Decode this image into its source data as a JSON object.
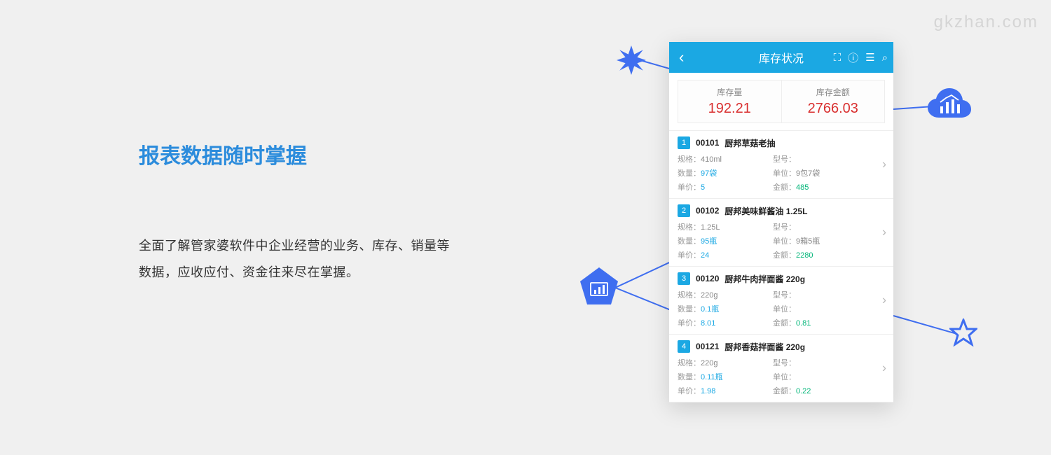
{
  "watermark": "gkzhan.com",
  "left": {
    "title": "报表数据随时掌握",
    "body": "全面了解管家婆软件中企业经营的业务、库存、销量等数据，应收应付、资金往来尽在掌握。"
  },
  "phone": {
    "header_title": "库存状况",
    "colors": {
      "brand": "#1ba8e3",
      "accent_red": "#d93030",
      "accent_blue": "#3f6ef0",
      "value_green": "#00b578"
    },
    "summary": [
      {
        "label": "库存量",
        "value": "192.21"
      },
      {
        "label": "库存金额",
        "value": "2766.03"
      }
    ],
    "items": [
      {
        "num": "1",
        "code": "00101",
        "name": "厨邦草菇老抽",
        "spec": "410ml",
        "model": "",
        "qty": "97袋",
        "unit": "9包7袋",
        "price": "5",
        "amount": "485"
      },
      {
        "num": "2",
        "code": "00102",
        "name": "厨邦美味鲜酱油 1.25L",
        "spec": "1.25L",
        "model": "",
        "qty": "95瓶",
        "unit": "9箱5瓶",
        "price": "24",
        "amount": "2280"
      },
      {
        "num": "3",
        "code": "00120",
        "name": "厨邦牛肉拌面酱 220g",
        "spec": "220g",
        "model": "",
        "qty": "0.1瓶",
        "unit": "",
        "price": "8.01",
        "amount": "0.81"
      },
      {
        "num": "4",
        "code": "00121",
        "name": "厨邦香菇拌面酱 220g",
        "spec": "220g",
        "model": "",
        "qty": "0.11瓶",
        "unit": "",
        "price": "1.98",
        "amount": "0.22"
      }
    ],
    "field_labels": {
      "spec": "规格：",
      "model": "型号：",
      "qty": "数量：",
      "unit": "单位：",
      "price": "单价：",
      "amount": "金额："
    }
  }
}
